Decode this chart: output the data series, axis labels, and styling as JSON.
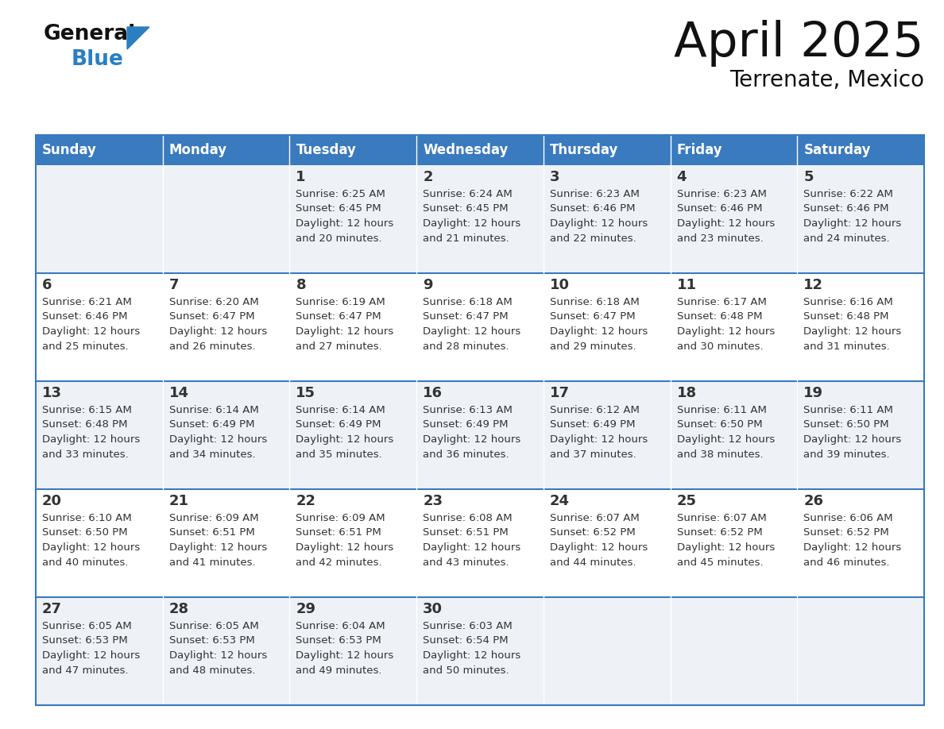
{
  "title": "April 2025",
  "subtitle": "Terrenate, Mexico",
  "header_bg": "#3a7abf",
  "header_text_color": "#ffffff",
  "day_names": [
    "Sunday",
    "Monday",
    "Tuesday",
    "Wednesday",
    "Thursday",
    "Friday",
    "Saturday"
  ],
  "row_bg_odd": "#eef2f7",
  "row_bg_even": "#ffffff",
  "cell_border_color": "#3a7abf",
  "date_color": "#333333",
  "info_color": "#333333",
  "logo_general_color": "#111111",
  "logo_blue_color": "#2b7fc1",
  "weeks": [
    [
      {
        "day": null,
        "info": null
      },
      {
        "day": null,
        "info": null
      },
      {
        "day": 1,
        "info": "Sunrise: 6:25 AM\nSunset: 6:45 PM\nDaylight: 12 hours\nand 20 minutes."
      },
      {
        "day": 2,
        "info": "Sunrise: 6:24 AM\nSunset: 6:45 PM\nDaylight: 12 hours\nand 21 minutes."
      },
      {
        "day": 3,
        "info": "Sunrise: 6:23 AM\nSunset: 6:46 PM\nDaylight: 12 hours\nand 22 minutes."
      },
      {
        "day": 4,
        "info": "Sunrise: 6:23 AM\nSunset: 6:46 PM\nDaylight: 12 hours\nand 23 minutes."
      },
      {
        "day": 5,
        "info": "Sunrise: 6:22 AM\nSunset: 6:46 PM\nDaylight: 12 hours\nand 24 minutes."
      }
    ],
    [
      {
        "day": 6,
        "info": "Sunrise: 6:21 AM\nSunset: 6:46 PM\nDaylight: 12 hours\nand 25 minutes."
      },
      {
        "day": 7,
        "info": "Sunrise: 6:20 AM\nSunset: 6:47 PM\nDaylight: 12 hours\nand 26 minutes."
      },
      {
        "day": 8,
        "info": "Sunrise: 6:19 AM\nSunset: 6:47 PM\nDaylight: 12 hours\nand 27 minutes."
      },
      {
        "day": 9,
        "info": "Sunrise: 6:18 AM\nSunset: 6:47 PM\nDaylight: 12 hours\nand 28 minutes."
      },
      {
        "day": 10,
        "info": "Sunrise: 6:18 AM\nSunset: 6:47 PM\nDaylight: 12 hours\nand 29 minutes."
      },
      {
        "day": 11,
        "info": "Sunrise: 6:17 AM\nSunset: 6:48 PM\nDaylight: 12 hours\nand 30 minutes."
      },
      {
        "day": 12,
        "info": "Sunrise: 6:16 AM\nSunset: 6:48 PM\nDaylight: 12 hours\nand 31 minutes."
      }
    ],
    [
      {
        "day": 13,
        "info": "Sunrise: 6:15 AM\nSunset: 6:48 PM\nDaylight: 12 hours\nand 33 minutes."
      },
      {
        "day": 14,
        "info": "Sunrise: 6:14 AM\nSunset: 6:49 PM\nDaylight: 12 hours\nand 34 minutes."
      },
      {
        "day": 15,
        "info": "Sunrise: 6:14 AM\nSunset: 6:49 PM\nDaylight: 12 hours\nand 35 minutes."
      },
      {
        "day": 16,
        "info": "Sunrise: 6:13 AM\nSunset: 6:49 PM\nDaylight: 12 hours\nand 36 minutes."
      },
      {
        "day": 17,
        "info": "Sunrise: 6:12 AM\nSunset: 6:49 PM\nDaylight: 12 hours\nand 37 minutes."
      },
      {
        "day": 18,
        "info": "Sunrise: 6:11 AM\nSunset: 6:50 PM\nDaylight: 12 hours\nand 38 minutes."
      },
      {
        "day": 19,
        "info": "Sunrise: 6:11 AM\nSunset: 6:50 PM\nDaylight: 12 hours\nand 39 minutes."
      }
    ],
    [
      {
        "day": 20,
        "info": "Sunrise: 6:10 AM\nSunset: 6:50 PM\nDaylight: 12 hours\nand 40 minutes."
      },
      {
        "day": 21,
        "info": "Sunrise: 6:09 AM\nSunset: 6:51 PM\nDaylight: 12 hours\nand 41 minutes."
      },
      {
        "day": 22,
        "info": "Sunrise: 6:09 AM\nSunset: 6:51 PM\nDaylight: 12 hours\nand 42 minutes."
      },
      {
        "day": 23,
        "info": "Sunrise: 6:08 AM\nSunset: 6:51 PM\nDaylight: 12 hours\nand 43 minutes."
      },
      {
        "day": 24,
        "info": "Sunrise: 6:07 AM\nSunset: 6:52 PM\nDaylight: 12 hours\nand 44 minutes."
      },
      {
        "day": 25,
        "info": "Sunrise: 6:07 AM\nSunset: 6:52 PM\nDaylight: 12 hours\nand 45 minutes."
      },
      {
        "day": 26,
        "info": "Sunrise: 6:06 AM\nSunset: 6:52 PM\nDaylight: 12 hours\nand 46 minutes."
      }
    ],
    [
      {
        "day": 27,
        "info": "Sunrise: 6:05 AM\nSunset: 6:53 PM\nDaylight: 12 hours\nand 47 minutes."
      },
      {
        "day": 28,
        "info": "Sunrise: 6:05 AM\nSunset: 6:53 PM\nDaylight: 12 hours\nand 48 minutes."
      },
      {
        "day": 29,
        "info": "Sunrise: 6:04 AM\nSunset: 6:53 PM\nDaylight: 12 hours\nand 49 minutes."
      },
      {
        "day": 30,
        "info": "Sunrise: 6:03 AM\nSunset: 6:54 PM\nDaylight: 12 hours\nand 50 minutes."
      },
      {
        "day": null,
        "info": null
      },
      {
        "day": null,
        "info": null
      },
      {
        "day": null,
        "info": null
      }
    ]
  ]
}
